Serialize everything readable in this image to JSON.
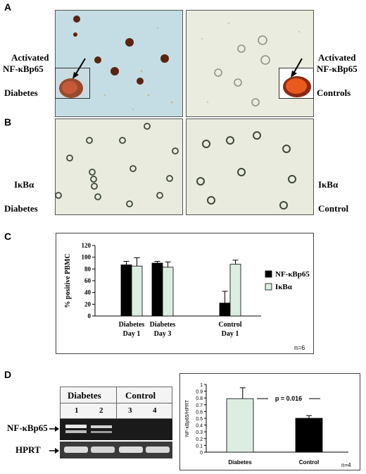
{
  "panel_a": {
    "letter": "A",
    "left_label_line1": "Activated",
    "left_label_line2": "NF-κBp65",
    "left_group": "Diabetes",
    "right_label_line1": "Activated",
    "right_label_line2": "NF-κBp65",
    "right_group": "Controls"
  },
  "panel_b": {
    "letter": "B",
    "left_label": "IκBα",
    "left_group": "Diabetes",
    "right_label": "IκBα",
    "right_group": "Control"
  },
  "panel_c": {
    "letter": "C",
    "n_note": "n=6",
    "legend": [
      "NF-κBp65",
      "IκBα"
    ]
  },
  "panel_d": {
    "letter": "D",
    "gel_header_left": "Diabetes",
    "gel_header_right": "Control",
    "lanes": [
      "1",
      "2",
      "3",
      "4"
    ],
    "row_labels": [
      "NF-κBp65",
      "HPRT"
    ],
    "n_note": "n=4",
    "pvalue": "p = 0.016"
  },
  "chart_data": [
    {
      "type": "bar",
      "categories": [
        "Diabetes Day 1",
        "Diabetes Day 3",
        "Control Day 1"
      ],
      "category_lines": [
        [
          "Diabetes",
          "Day 1"
        ],
        [
          "Diabetes",
          "Day 3"
        ],
        [
          "Control",
          "Day 1"
        ]
      ],
      "series": [
        {
          "name": "NF-κBp65",
          "values": [
            87,
            90,
            22
          ],
          "errors": [
            6,
            3,
            20
          ],
          "color": "#000000"
        },
        {
          "name": "IκBα",
          "values": [
            85,
            83,
            88
          ],
          "errors": [
            14,
            9,
            7
          ],
          "color": "#dceee2"
        }
      ],
      "xlabel": "",
      "ylabel": "% positive PBMC",
      "ylim": [
        0,
        120
      ],
      "yticks": [
        0,
        20,
        40,
        60,
        80,
        100,
        120
      ],
      "legend_position": "right"
    },
    {
      "type": "bar",
      "categories": [
        "Diabetes",
        "Control"
      ],
      "values": [
        0.79,
        0.5
      ],
      "errors": [
        0.16,
        0.04
      ],
      "colors": [
        "#dceee2",
        "#000000"
      ],
      "xlabel": "",
      "ylabel": "NF-κBp65/HPRT",
      "ylim": [
        0,
        1
      ],
      "yticks": [
        0,
        0.1,
        0.2,
        0.3,
        0.4,
        0.5,
        0.6,
        0.7,
        0.8,
        0.9,
        1
      ]
    }
  ]
}
